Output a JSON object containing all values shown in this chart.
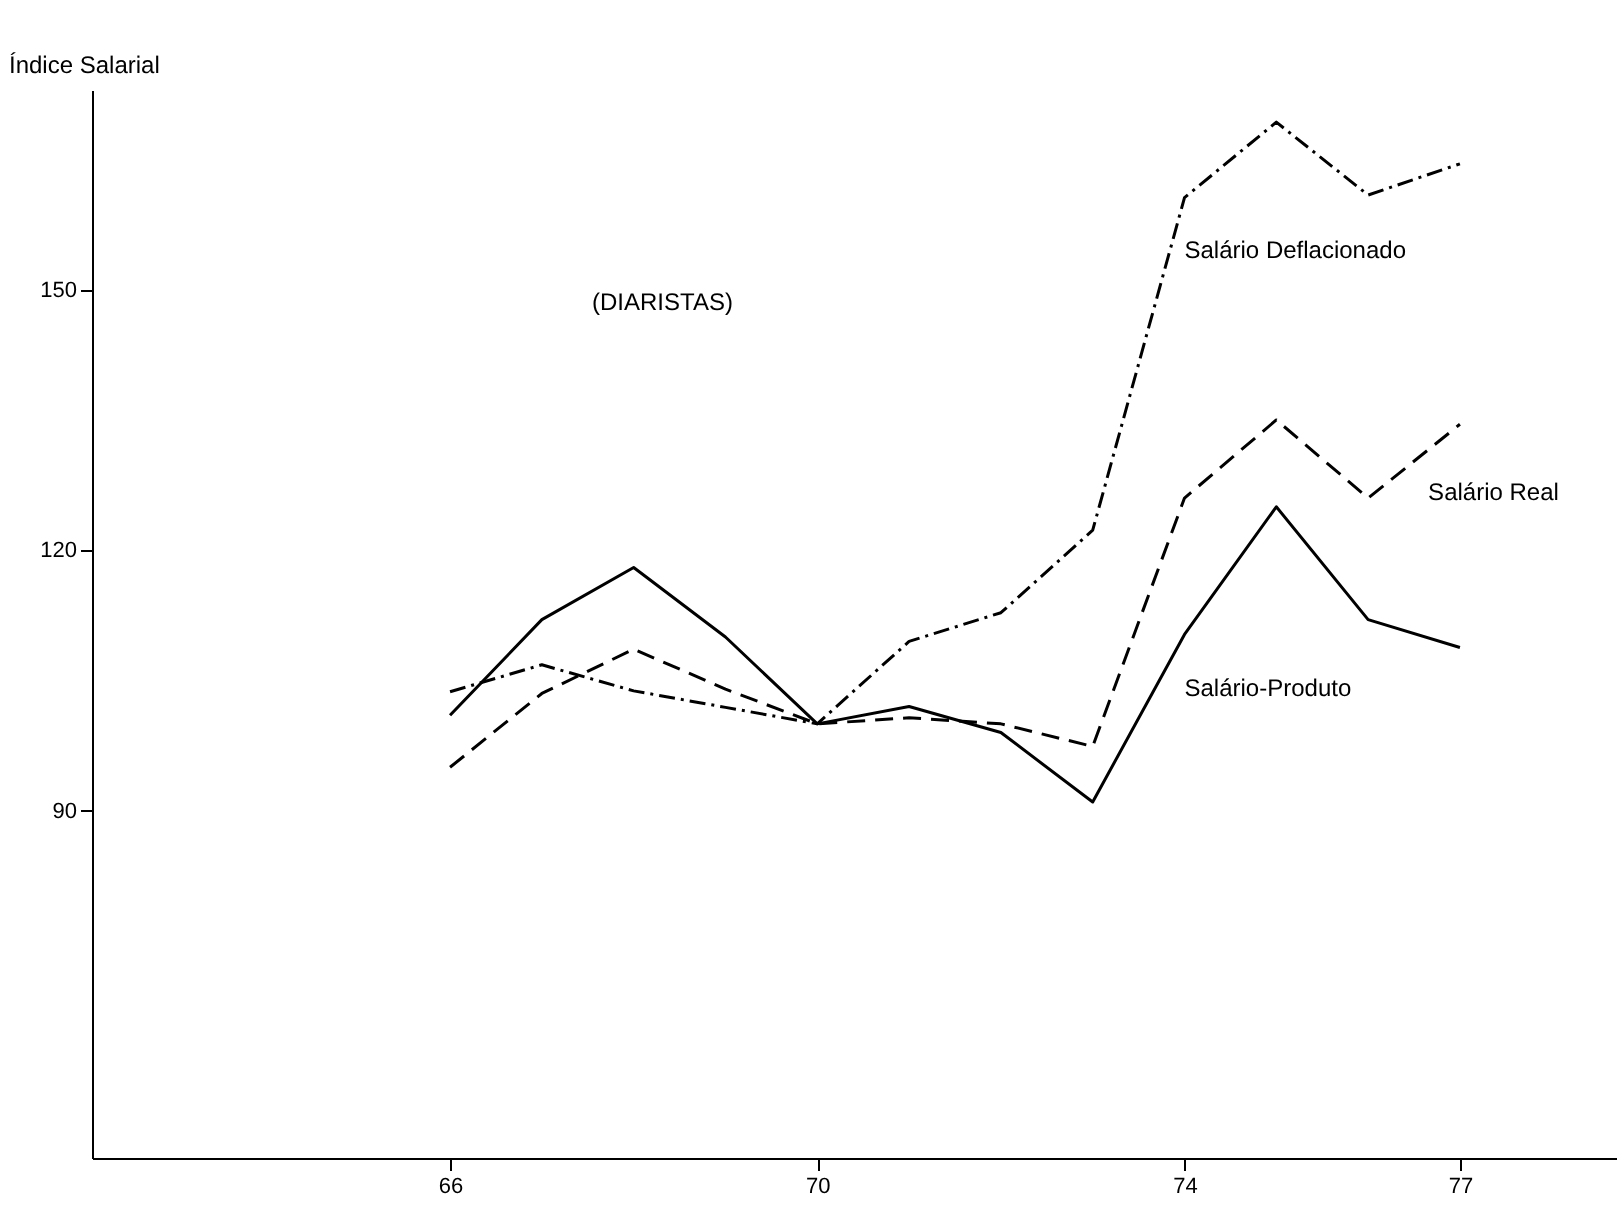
{
  "chart_data": {
    "type": "line",
    "title": "(DIARISTAS)",
    "ylabel": "Índice Salarial",
    "x": [
      66,
      67,
      68,
      69,
      70,
      71,
      72,
      73,
      74,
      75,
      76,
      77
    ],
    "series": [
      {
        "name": "Salário Deflacionado",
        "color": "#000000",
        "line_style": "dotted",
        "values": [
          103.7,
          106.8,
          103.8,
          101.9,
          100,
          109.5,
          112.8,
          122.3,
          160.6,
          169.3,
          160.9,
          164.5
        ]
      },
      {
        "name": "Salário Real",
        "color": "#000000",
        "line_style": "dashed",
        "values": [
          95,
          103.5,
          108.6,
          104,
          100,
          100.7,
          100,
          97.4,
          126,
          135,
          126,
          134.5
        ]
      },
      {
        "name": "Salário-Produto",
        "color": "#000000",
        "line_style": "solid",
        "values": [
          101,
          112,
          118,
          110,
          100,
          102,
          99,
          91,
          110.3,
          125,
          112,
          108.8
        ]
      }
    ],
    "xlim": [
      62.1,
      78.7
    ],
    "xticks": [
      66,
      70,
      74,
      77
    ],
    "ylim": [
      50,
      173
    ],
    "yticks": [
      90,
      120,
      150
    ],
    "grid": false,
    "marker": "none"
  }
}
